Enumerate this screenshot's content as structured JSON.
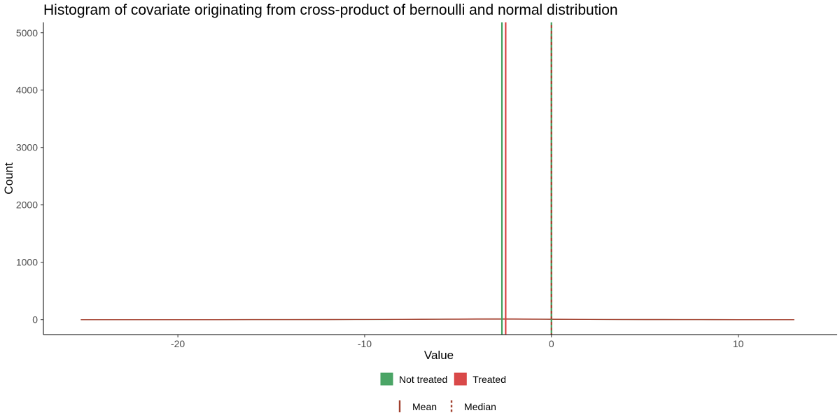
{
  "chart_data": {
    "type": "histogram",
    "title": "Histogram of covariate originating from cross-product of bernoulli and normal distribution",
    "xlabel": "Value",
    "ylabel": "Count",
    "xlim": [
      -27.2,
      15.3
    ],
    "ylim": [
      -260,
      5180
    ],
    "x_ticks": [
      -20,
      -10,
      0,
      10
    ],
    "y_ticks": [
      0,
      1000,
      2000,
      3000,
      4000,
      5000
    ],
    "grid": false,
    "legend_position": "bottom",
    "series": [
      {
        "name": "Not treated",
        "color": "#41A05E",
        "mean": -2.65,
        "median": 0.0,
        "spike": {
          "x": 0.0,
          "count": 4980
        },
        "x": [
          -25.2,
          -22,
          -20,
          -18,
          -16,
          -14,
          -12,
          -10,
          -9,
          -8,
          -7,
          -6,
          -5,
          -4,
          -3,
          -2,
          -1,
          -0.3,
          0.3,
          1,
          2,
          3,
          4,
          5,
          6,
          7,
          8,
          10,
          12,
          13.0
        ],
        "counts": [
          0,
          0,
          0,
          0,
          1,
          1,
          2,
          3,
          4,
          5,
          7,
          9,
          11,
          13,
          14,
          13,
          11,
          9,
          7,
          6,
          5,
          4,
          3,
          2,
          2,
          1,
          1,
          0,
          0,
          0
        ]
      },
      {
        "name": "Treated",
        "color": "#D73F3F",
        "mean": -2.45,
        "median": 0.0,
        "spike": {
          "x": 0.0,
          "count": 4990
        },
        "x": [
          -25.2,
          -22,
          -20,
          -18,
          -16,
          -14,
          -12,
          -10,
          -9,
          -8,
          -7,
          -6,
          -5,
          -4,
          -3,
          -2,
          -1,
          -0.3,
          0.3,
          1,
          2,
          3,
          4,
          5,
          6,
          7,
          8,
          10,
          12,
          13.0
        ],
        "counts": [
          0,
          0,
          0,
          0,
          1,
          1,
          2,
          4,
          5,
          6,
          8,
          10,
          12,
          14,
          15,
          14,
          12,
          10,
          8,
          7,
          5,
          4,
          3,
          2,
          2,
          1,
          1,
          0,
          0,
          0
        ]
      }
    ],
    "legend_fill": [
      {
        "label": "Not treated",
        "color": "#41A05E"
      },
      {
        "label": "Treated",
        "color": "#D73F3F"
      }
    ],
    "legend_lines": [
      {
        "label": "Mean",
        "style": "solid",
        "color": "#A0402E"
      },
      {
        "label": "Median",
        "style": "dashed",
        "color": "#A0402E"
      }
    ]
  }
}
